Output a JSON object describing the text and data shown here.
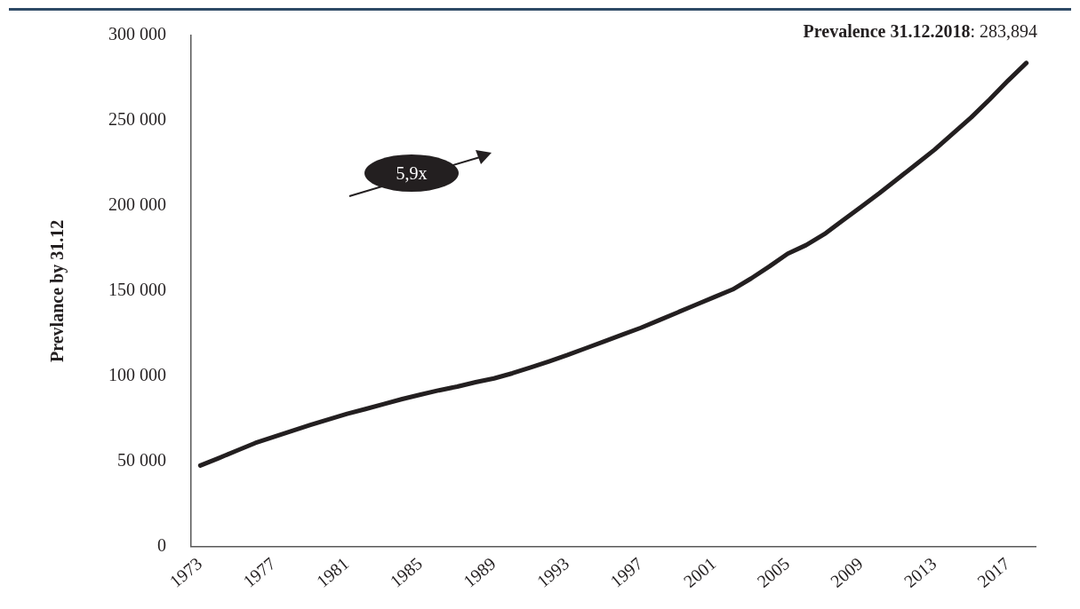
{
  "chart_data": {
    "type": "line",
    "ylabel": "Prevlance by 31.12",
    "categories": [
      "1973",
      null,
      null,
      null,
      "1977",
      null,
      null,
      null,
      "1981",
      null,
      null,
      null,
      "1985",
      null,
      null,
      null,
      "1989",
      null,
      null,
      null,
      "1993",
      null,
      null,
      null,
      "1997",
      null,
      null,
      null,
      "2001",
      null,
      null,
      null,
      "2005",
      null,
      null,
      null,
      "2009",
      null,
      null,
      null,
      "2013",
      null,
      null,
      null,
      "2017",
      null
    ],
    "series": [
      {
        "color": "#231f20",
        "values": [
          47700,
          52000,
          56500,
          60900,
          64500,
          68000,
          71500,
          74800,
          78000,
          80800,
          83800,
          86700,
          89300,
          91800,
          94000,
          96600,
          98800,
          101800,
          105200,
          108800,
          112500,
          116500,
          120500,
          124500,
          128500,
          133000,
          137500,
          142000,
          146500,
          151000,
          157400,
          164500,
          172000,
          177000,
          183500,
          191500,
          199500,
          207500,
          216000,
          224500,
          233000,
          242500,
          252000,
          262500,
          273500,
          283894
        ]
      }
    ],
    "ylim": [
      0,
      300000
    ],
    "yticks": [
      0,
      {
        "value": 50000,
        "label": "50 000"
      },
      {
        "value": 100000,
        "label": "100 000"
      },
      {
        "value": 150000,
        "label": "150 000"
      },
      {
        "value": 200000,
        "label": "200 000"
      },
      {
        "value": 250000,
        "label": "250 000"
      },
      {
        "value": 300000,
        "label": "300 000"
      }
    ],
    "grid": false,
    "legend": false,
    "marker": "none",
    "line_style": "solid",
    "annotations": [
      "Prevalence 31.12.2018: 283,894",
      "5,9x"
    ]
  }
}
